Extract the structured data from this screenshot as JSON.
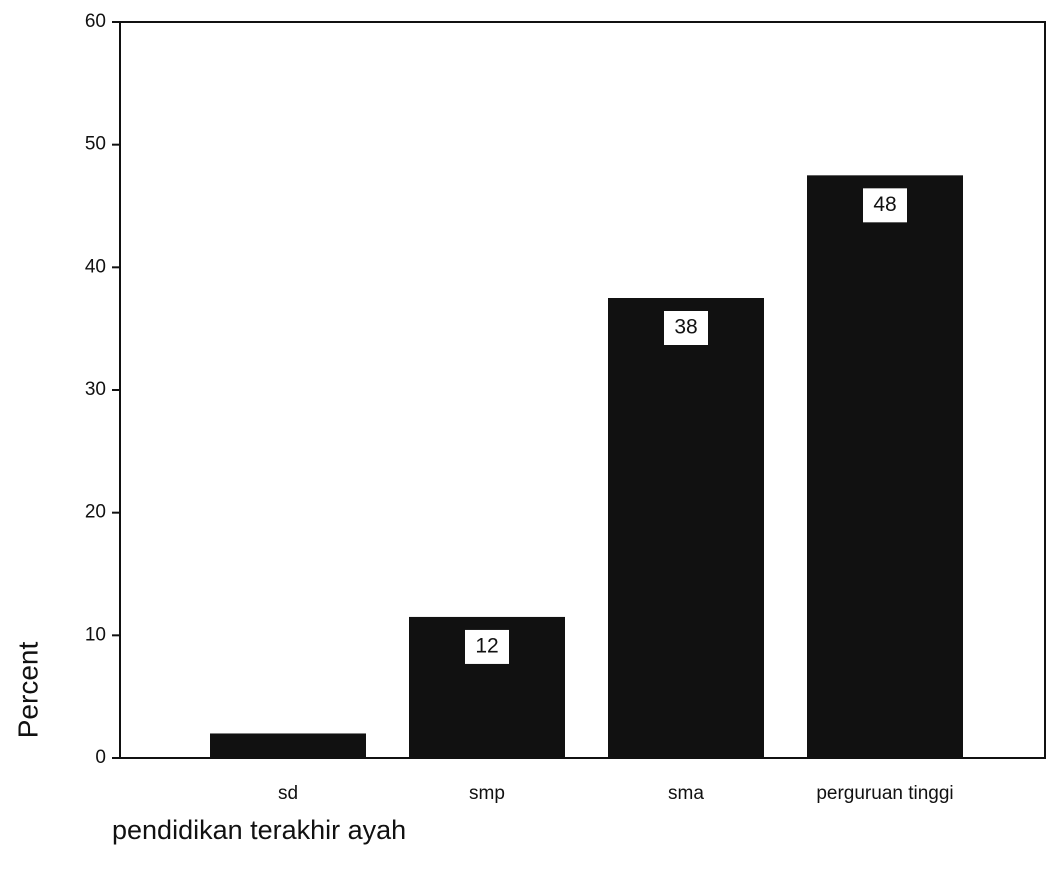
{
  "chart_data": {
    "type": "bar",
    "x_label": "pendidikan terakhir ayah",
    "y_label": "Percent",
    "categories": [
      "sd",
      "smp",
      "sma",
      "perguruan tinggi"
    ],
    "values": [
      2,
      11.5,
      37.5,
      47.5
    ],
    "value_labels": [
      null,
      "12",
      "38",
      "48"
    ],
    "color": "#111111",
    "ylim": [
      0,
      60
    ],
    "yticks": [
      0,
      10,
      20,
      30,
      40,
      50,
      60
    ]
  }
}
